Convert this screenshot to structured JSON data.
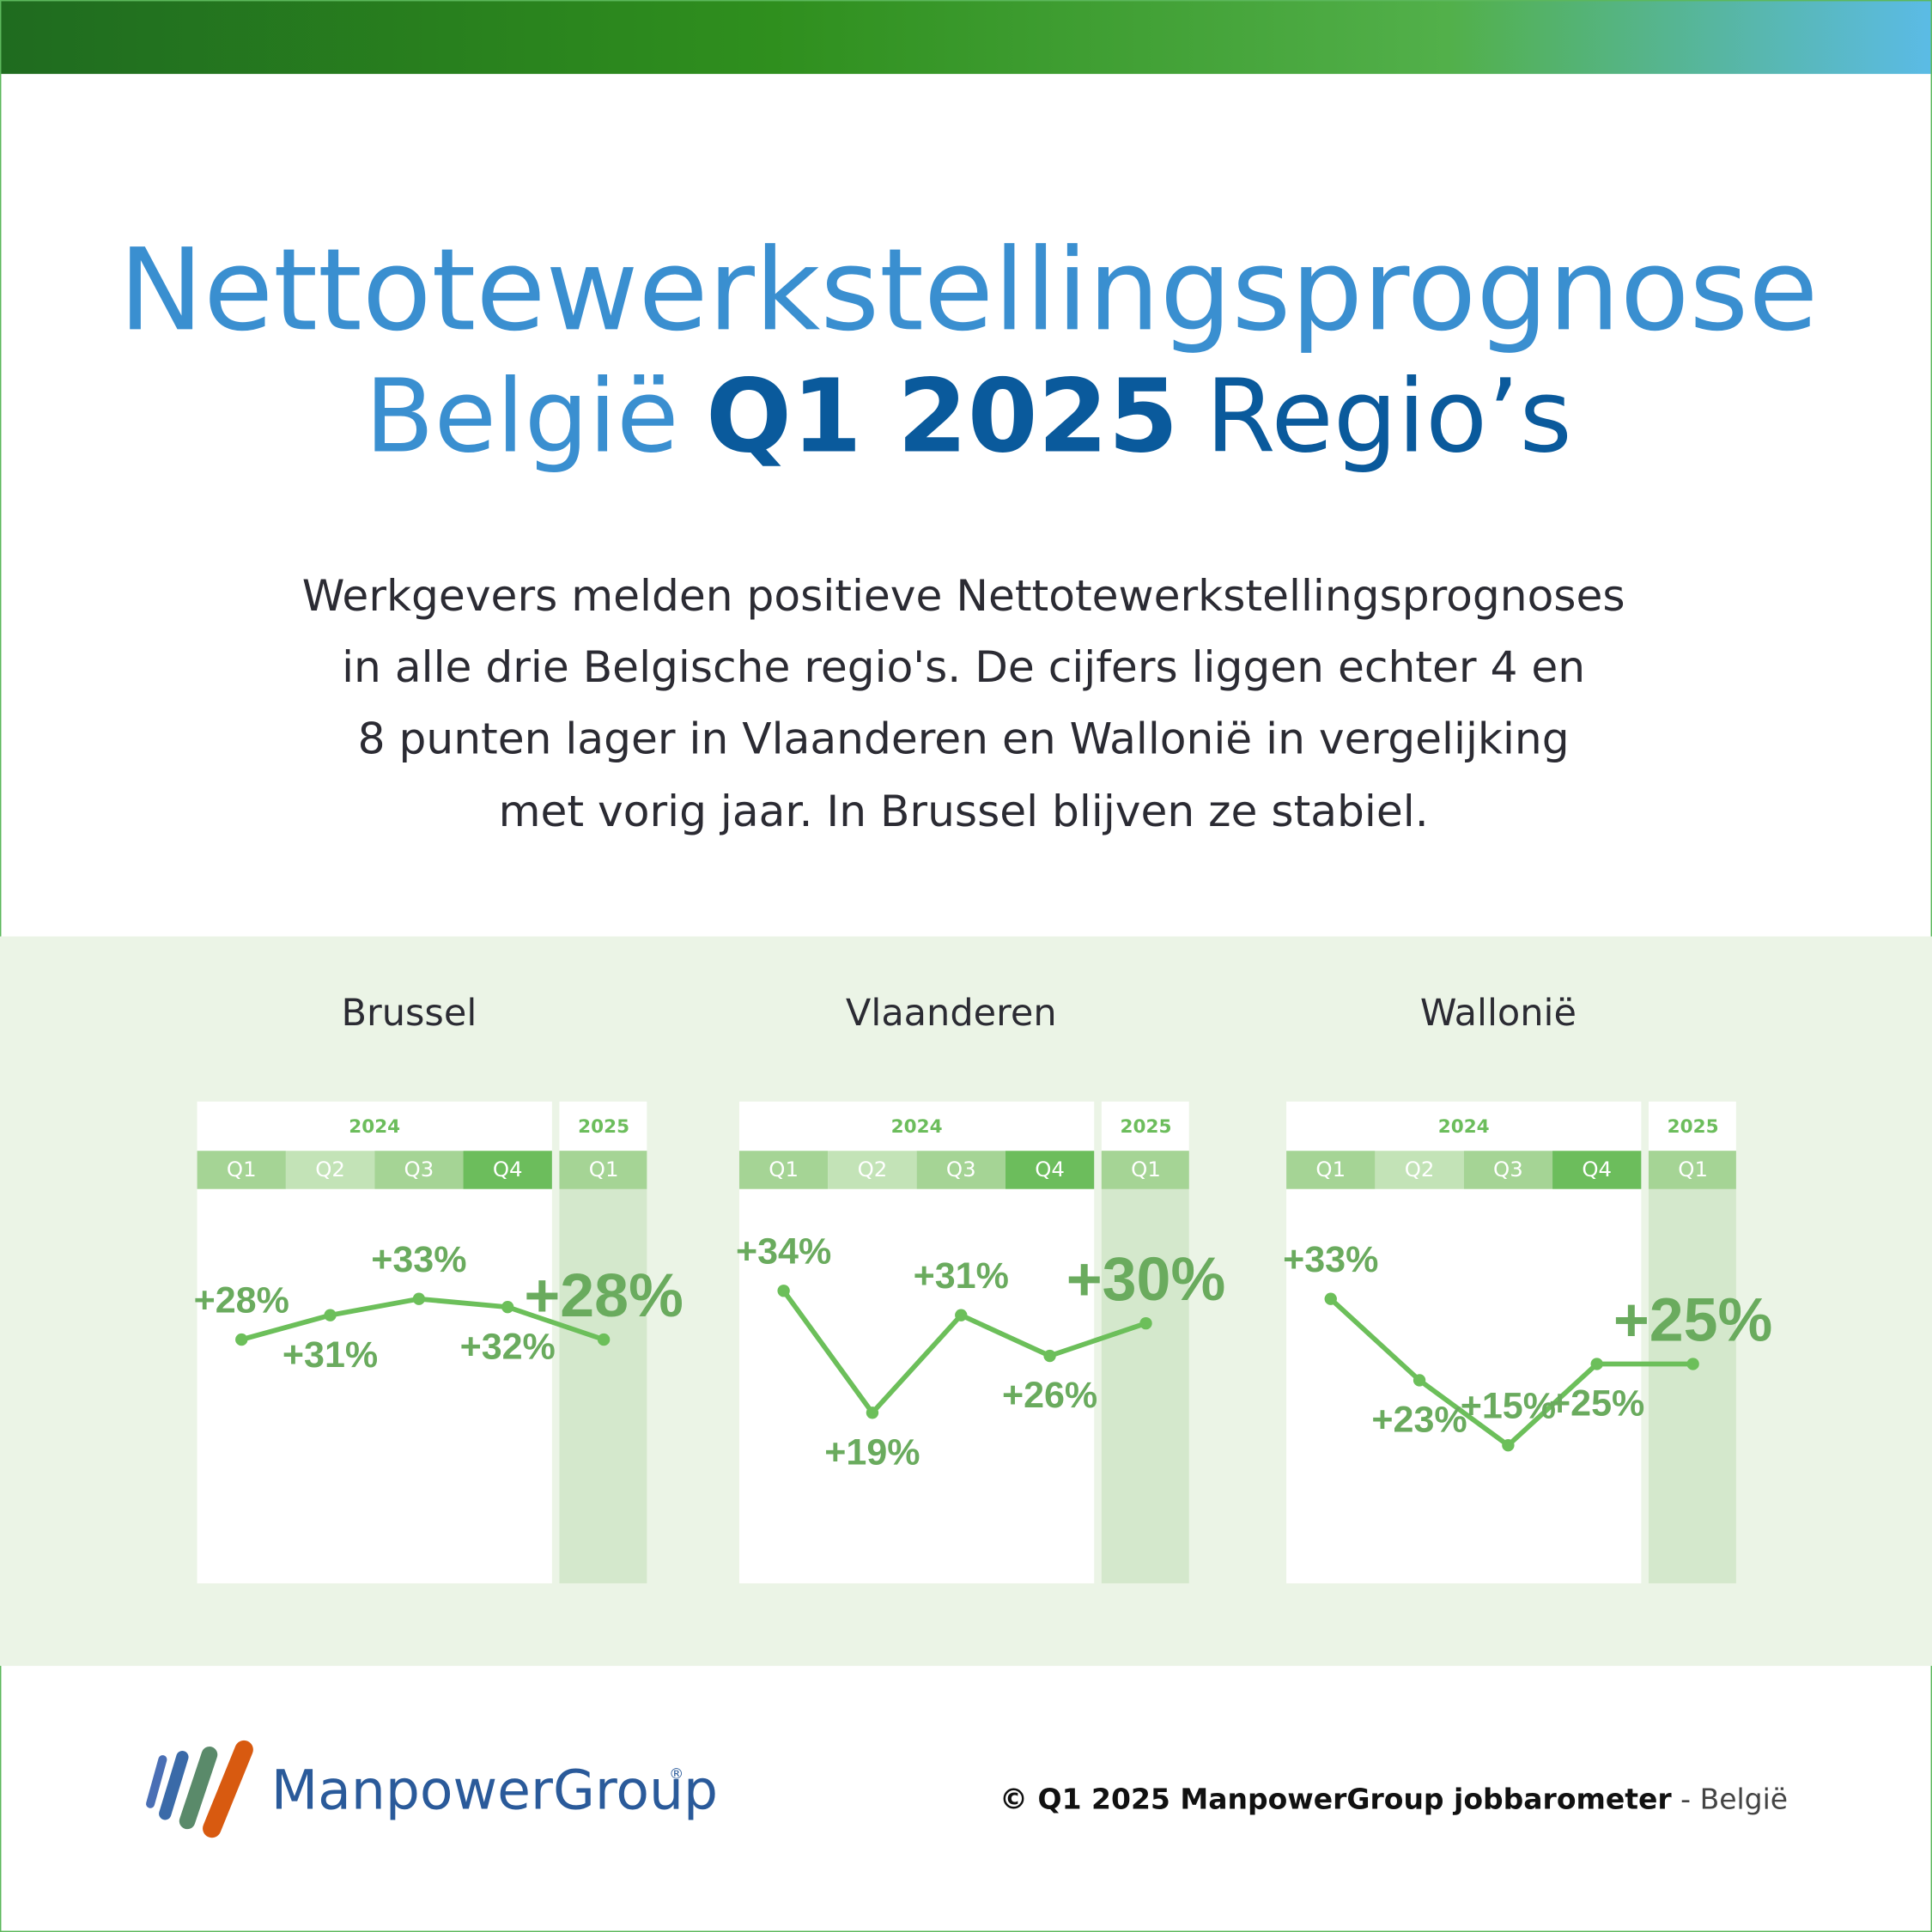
{
  "header": {
    "title_line1": "Nettotewerkstellingsprognose",
    "title_part1": "België",
    "title_part2": "Q1 2025",
    "title_part3": "Regio’s"
  },
  "description": [
    "Werkgevers melden positieve Nettotewerkstellingsprognoses",
    "in alle drie Belgische regio's. De cijfers liggen echter 4 en",
    "8 punten lager in Vlaanderen en Wallonië in vergelijking",
    "met vorig jaar. In Brussel blijven ze stabiel."
  ],
  "chart_data": [
    {
      "type": "line",
      "title": "Brussel",
      "years": [
        "2024",
        "2025"
      ],
      "categories": [
        "Q1",
        "Q2",
        "Q3",
        "Q4",
        "Q1"
      ],
      "values": [
        28,
        31,
        33,
        32,
        28
      ],
      "value_labels": [
        "+28%",
        "+31%",
        "+33%",
        "+32%",
        "+28%"
      ],
      "color": "#6cbf5a",
      "ylim": [
        0,
        40
      ]
    },
    {
      "type": "line",
      "title": "Vlaanderen",
      "years": [
        "2024",
        "2025"
      ],
      "categories": [
        "Q1",
        "Q2",
        "Q3",
        "Q4",
        "Q1"
      ],
      "values": [
        34,
        19,
        31,
        26,
        30
      ],
      "value_labels": [
        "+34%",
        "+19%",
        "+31%",
        "+26%",
        "+30%"
      ],
      "color": "#6cbf5a",
      "ylim": [
        0,
        40
      ]
    },
    {
      "type": "line",
      "title": "Wallonië",
      "years": [
        "2024",
        "2025"
      ],
      "categories": [
        "Q1",
        "Q2",
        "Q3",
        "Q4",
        "Q1"
      ],
      "values": [
        33,
        23,
        15,
        25,
        25
      ],
      "value_labels": [
        "+33%",
        "+23%",
        "+15%",
        "+25%",
        "+25%"
      ],
      "color": "#6cbf5a",
      "ylim": [
        0,
        40
      ]
    }
  ],
  "footer": {
    "logo": "ManpowerGroup",
    "logo_mark": "®",
    "source": "© Q1 2025 ManpowerGroup jobbarometer",
    "source_suffix": " - België"
  }
}
